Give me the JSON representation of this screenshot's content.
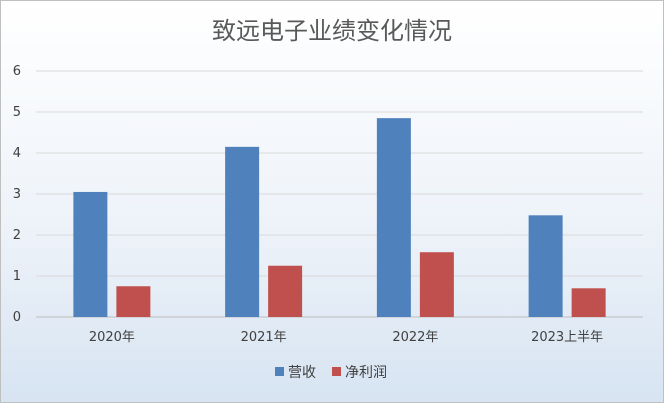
{
  "chart_data": {
    "type": "bar",
    "title": "致远电子业绩变化情况",
    "categories": [
      "2020年",
      "2021年",
      "2022年",
      "2023上半年"
    ],
    "series": [
      {
        "name": "营收",
        "color": "#4f81bd",
        "values": [
          3.05,
          4.15,
          4.85,
          2.48
        ]
      },
      {
        "name": "净利润",
        "color": "#c0504d",
        "values": [
          0.75,
          1.25,
          1.58,
          0.7
        ]
      }
    ],
    "ylim": [
      0,
      6
    ],
    "yticks": [
      "0",
      "1",
      "2",
      "3",
      "4",
      "5",
      "6"
    ],
    "grid": true,
    "legend": "bottom"
  }
}
